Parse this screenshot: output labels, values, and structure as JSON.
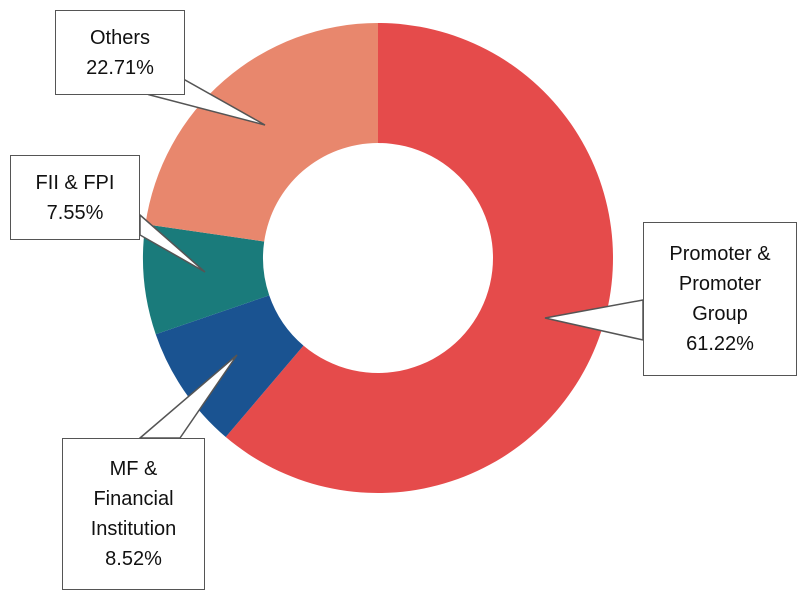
{
  "chart_data": {
    "type": "donut",
    "categories": [
      "Promoter & Promoter Group",
      "MF & Financial Institution",
      "FII & FPI",
      "Others"
    ],
    "values": [
      61.22,
      8.52,
      7.55,
      22.71
    ],
    "value_labels": [
      "61.22%",
      "8.52%",
      "7.55%",
      "22.71%"
    ],
    "colors": [
      "#e54b4b",
      "#1a5391",
      "#1a7b7b",
      "#e8876d"
    ]
  }
}
